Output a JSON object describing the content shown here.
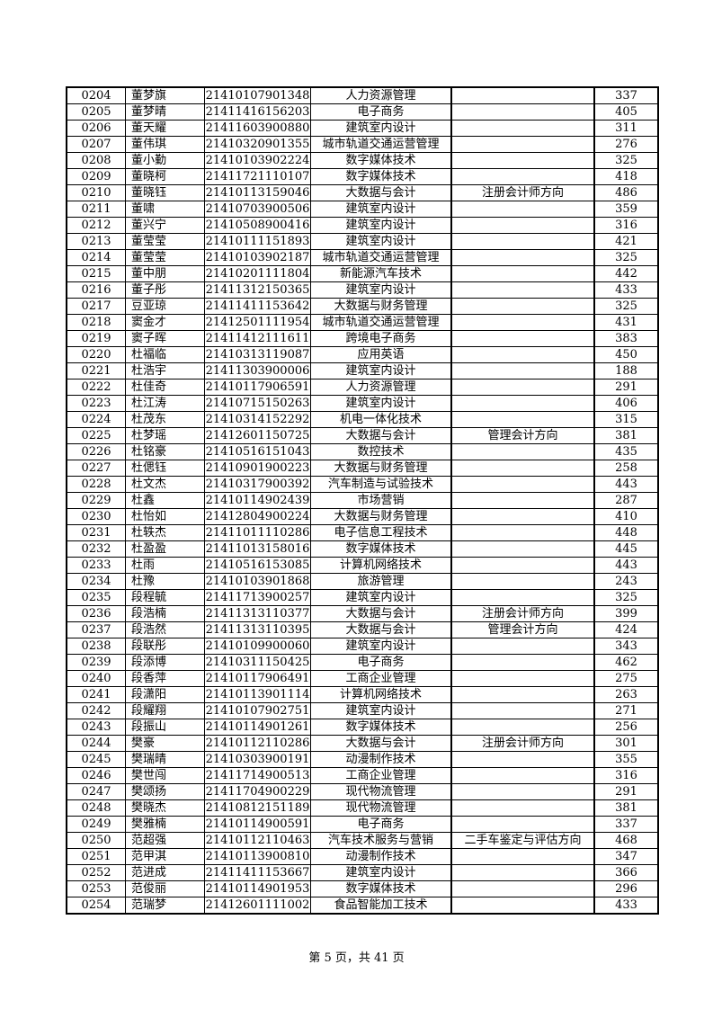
{
  "table": {
    "rows": [
      [
        "0204",
        "董梦旗",
        "21410107901348",
        "人力资源管理",
        "",
        "337"
      ],
      [
        "0205",
        "董梦晴",
        "21411416156203",
        "电子商务",
        "",
        "405"
      ],
      [
        "0206",
        "董天耀",
        "21411603900880",
        "建筑室内设计",
        "",
        "311"
      ],
      [
        "0207",
        "董伟琪",
        "21410320901355",
        "城市轨道交通运营管理",
        "",
        "276"
      ],
      [
        "0208",
        "董小勤",
        "21410103902224",
        "数字媒体技术",
        "",
        "325"
      ],
      [
        "0209",
        "董晓柯",
        "21411721110107",
        "数字媒体技术",
        "",
        "418"
      ],
      [
        "0210",
        "董晓钰",
        "21410113159046",
        "大数据与会计",
        "注册会计师方向",
        "486"
      ],
      [
        "0211",
        "董啸",
        "21410703900506",
        "建筑室内设计",
        "",
        "359"
      ],
      [
        "0212",
        "董兴宁",
        "21410508900416",
        "建筑室内设计",
        "",
        "316"
      ],
      [
        "0213",
        "董莹莹",
        "21410111151893",
        "建筑室内设计",
        "",
        "421"
      ],
      [
        "0214",
        "董莹莹",
        "21410103902187",
        "城市轨道交通运营管理",
        "",
        "325"
      ],
      [
        "0215",
        "董中朋",
        "21410201111804",
        "新能源汽车技术",
        "",
        "442"
      ],
      [
        "0216",
        "董子彤",
        "21411312150365",
        "建筑室内设计",
        "",
        "433"
      ],
      [
        "0217",
        "豆亚琼",
        "21411411153642",
        "大数据与财务管理",
        "",
        "325"
      ],
      [
        "0218",
        "窦金才",
        "21412501111954",
        "城市轨道交通运营管理",
        "",
        "431"
      ],
      [
        "0219",
        "窦子晖",
        "21411412111611",
        "跨境电子商务",
        "",
        "383"
      ],
      [
        "0220",
        "杜福临",
        "21410313119087",
        "应用英语",
        "",
        "450"
      ],
      [
        "0221",
        "杜浩宇",
        "21411303900006",
        "建筑室内设计",
        "",
        "188"
      ],
      [
        "0222",
        "杜佳奇",
        "21410117906591",
        "人力资源管理",
        "",
        "291"
      ],
      [
        "0223",
        "杜江涛",
        "21410715150263",
        "建筑室内设计",
        "",
        "406"
      ],
      [
        "0224",
        "杜茂东",
        "21410314152292",
        "机电一体化技术",
        "",
        "315"
      ],
      [
        "0225",
        "杜梦瑶",
        "21412601150725",
        "大数据与会计",
        "管理会计方向",
        "381"
      ],
      [
        "0226",
        "杜铭豪",
        "21410516151043",
        "数控技术",
        "",
        "435"
      ],
      [
        "0227",
        "杜偲钰",
        "21410901900223",
        "大数据与财务管理",
        "",
        "258"
      ],
      [
        "0228",
        "杜文杰",
        "21410317900392",
        "汽车制造与试验技术",
        "",
        "443"
      ],
      [
        "0229",
        "杜鑫",
        "21410114902439",
        "市场营销",
        "",
        "287"
      ],
      [
        "0230",
        "杜怡如",
        "21412804900224",
        "大数据与财务管理",
        "",
        "410"
      ],
      [
        "0231",
        "杜轶杰",
        "21411011110286",
        "电子信息工程技术",
        "",
        "448"
      ],
      [
        "0232",
        "杜盈盈",
        "21411013158016",
        "数字媒体技术",
        "",
        "445"
      ],
      [
        "0233",
        "杜雨",
        "21410516153085",
        "计算机网络技术",
        "",
        "443"
      ],
      [
        "0234",
        "杜豫",
        "21410103901868",
        "旅游管理",
        "",
        "243"
      ],
      [
        "0235",
        "段程毓",
        "21411713900257",
        "建筑室内设计",
        "",
        "325"
      ],
      [
        "0236",
        "段浩楠",
        "21411313110377",
        "大数据与会计",
        "注册会计师方向",
        "399"
      ],
      [
        "0237",
        "段浩然",
        "21411313110395",
        "大数据与会计",
        "管理会计方向",
        "424"
      ],
      [
        "0238",
        "段联彤",
        "21410109900060",
        "建筑室内设计",
        "",
        "343"
      ],
      [
        "0239",
        "段添博",
        "21410311150425",
        "电子商务",
        "",
        "462"
      ],
      [
        "0240",
        "段香萍",
        "21410117906491",
        "工商企业管理",
        "",
        "275"
      ],
      [
        "0241",
        "段潇阳",
        "21410113901114",
        "计算机网络技术",
        "",
        "263"
      ],
      [
        "0242",
        "段耀翔",
        "21410107902751",
        "建筑室内设计",
        "",
        "271"
      ],
      [
        "0243",
        "段振山",
        "21410114901261",
        "数字媒体技术",
        "",
        "256"
      ],
      [
        "0244",
        "樊豪",
        "21410112110286",
        "大数据与会计",
        "注册会计师方向",
        "301"
      ],
      [
        "0245",
        "樊瑞晴",
        "21410303900191",
        "动漫制作技术",
        "",
        "355"
      ],
      [
        "0246",
        "樊世闯",
        "21411714900513",
        "工商企业管理",
        "",
        "316"
      ],
      [
        "0247",
        "樊颂扬",
        "21411704900229",
        "现代物流管理",
        "",
        "291"
      ],
      [
        "0248",
        "樊晓杰",
        "21410812151189",
        "现代物流管理",
        "",
        "381"
      ],
      [
        "0249",
        "樊雅楠",
        "21410114900591",
        "电子商务",
        "",
        "337"
      ],
      [
        "0250",
        "范超强",
        "21410112110463",
        "汽车技术服务与营销",
        "二手车鉴定与评估方向",
        "468"
      ],
      [
        "0251",
        "范甲淇",
        "21410113900810",
        "动漫制作技术",
        "",
        "347"
      ],
      [
        "0252",
        "范进成",
        "21411411153667",
        "建筑室内设计",
        "",
        "366"
      ],
      [
        "0253",
        "范俊丽",
        "21410114901953",
        "数字媒体技术",
        "",
        "296"
      ],
      [
        "0254",
        "范瑞梦",
        "21412601111002",
        "食品智能加工技术",
        "",
        "433"
      ]
    ]
  },
  "footer": {
    "page_label": "第 5 页，共 41 页"
  }
}
